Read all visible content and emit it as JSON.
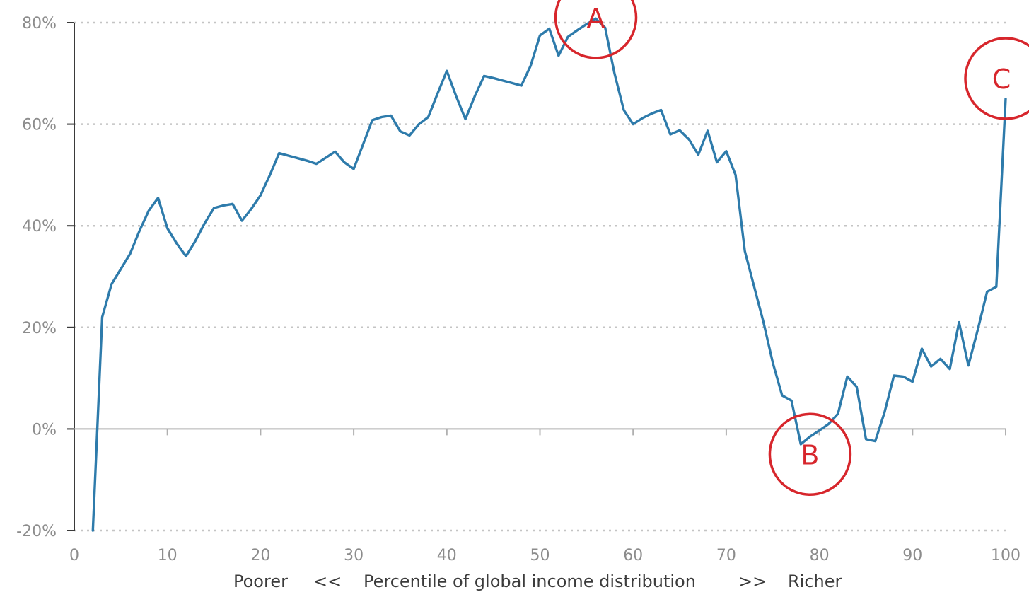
{
  "chart_data": {
    "type": "line",
    "title": "",
    "xlabel": "Percentile of global income distribution",
    "xlabel_left": "Poorer",
    "xlabel_left_arrow": "<<",
    "xlabel_right_arrow": ">>",
    "xlabel_right": "Richer",
    "xlim": [
      0,
      100
    ],
    "ylim": [
      -20,
      80
    ],
    "x_ticks": [
      0,
      10,
      20,
      30,
      40,
      50,
      60,
      70,
      80,
      90,
      100
    ],
    "x_tick_labels": [
      "0",
      "10",
      "20",
      "30",
      "40",
      "50",
      "60",
      "70",
      "80",
      "90",
      "100"
    ],
    "y_ticks": [
      80,
      60,
      40,
      20,
      0,
      -20
    ],
    "y_tick_labels": [
      "80%",
      "60%",
      "40%",
      "20%",
      "0%",
      "-20%"
    ],
    "grid": "horizontal dotted",
    "line_color": "#2e7bab",
    "annotation_color": "#d7262c",
    "series": [
      {
        "x": [
          2,
          3,
          4,
          5,
          6,
          7,
          8,
          9,
          10,
          11,
          12,
          13,
          14,
          15,
          16,
          17,
          18,
          19,
          20,
          21,
          22,
          23,
          24,
          25,
          26,
          27,
          28,
          29,
          30,
          31,
          32,
          33,
          34,
          35,
          36,
          37,
          38,
          39,
          40,
          41,
          42,
          43,
          44,
          45,
          46,
          47,
          48,
          49,
          50,
          51,
          52,
          53,
          54,
          55,
          56,
          57,
          58,
          59,
          60,
          61,
          62,
          63,
          64,
          65,
          66,
          67,
          68,
          69,
          70,
          71,
          72,
          73,
          74,
          75,
          76,
          77,
          78,
          79,
          80,
          81,
          82,
          83,
          84,
          85,
          86,
          87,
          88,
          89,
          90,
          91,
          92,
          93,
          94,
          95,
          96,
          97,
          98,
          99,
          100
        ],
        "values": [
          -20,
          22,
          28.5,
          31.5,
          34.5,
          39,
          43,
          45.5,
          39.5,
          36.5,
          34,
          37,
          40.5,
          43.5,
          44,
          44.3,
          41,
          43.3,
          46,
          50,
          54.3,
          53.8,
          53.3,
          52.8,
          52.2,
          53.4,
          54.6,
          52.5,
          51.2,
          56,
          60.8,
          61.4,
          61.7,
          58.6,
          57.8,
          60,
          61.4,
          66,
          70.5,
          65.5,
          61,
          65.5,
          69.5,
          69.1,
          68.6,
          68.1,
          67.6,
          71.5,
          77.5,
          78.8,
          73.5,
          77.2,
          78.5,
          79.7,
          80.8,
          79,
          70,
          62.8,
          60,
          61.2,
          62.1,
          62.8,
          58,
          58.8,
          57,
          54,
          58.7,
          52.5,
          54.7,
          50,
          35,
          28,
          21,
          13,
          6.6,
          5.6,
          -3,
          -1.5,
          -0.3,
          1,
          3,
          10.3,
          8.3,
          -2,
          -2.4,
          3.3,
          10.5,
          10.3,
          9.3,
          15.8,
          12.3,
          13.8,
          11.8,
          21,
          12.5,
          19.5,
          27,
          28,
          65
        ]
      }
    ],
    "annotations": [
      {
        "label": "A",
        "x": 56,
        "y": 81
      },
      {
        "label": "B",
        "x": 79,
        "y": -5
      },
      {
        "label": "C",
        "x": 100,
        "y": 69
      }
    ]
  }
}
